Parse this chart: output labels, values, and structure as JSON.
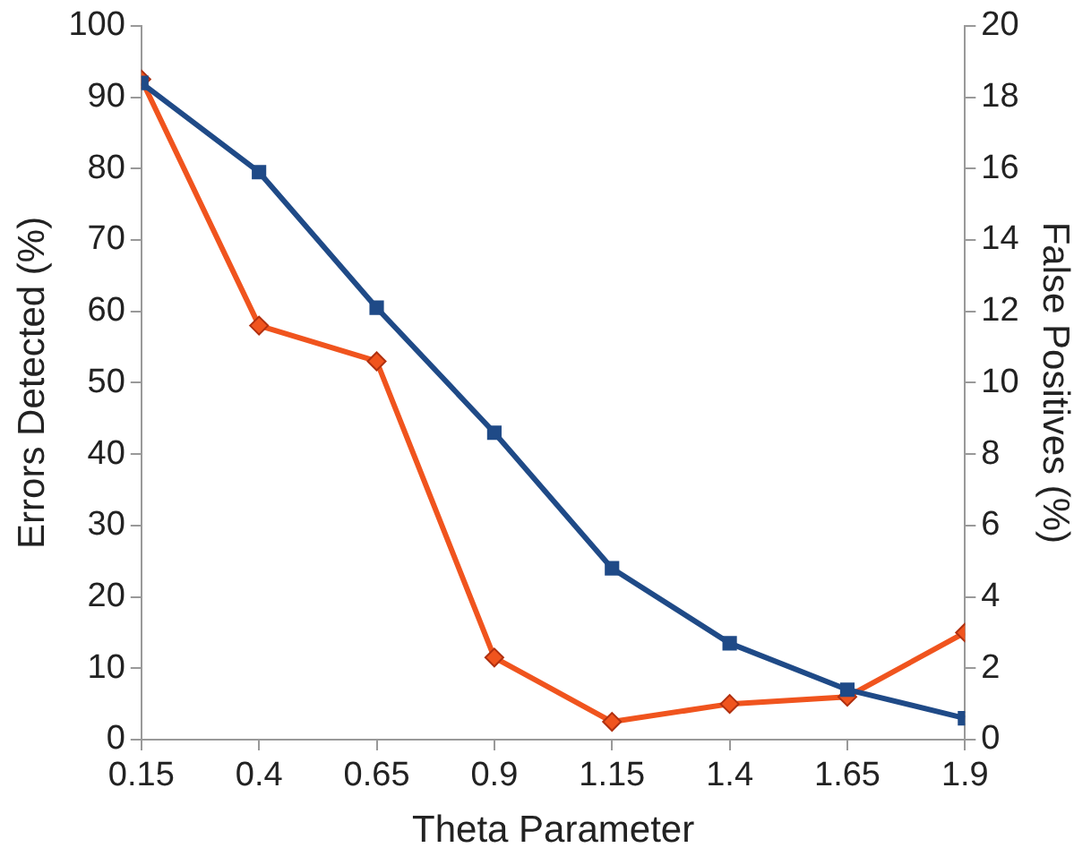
{
  "chart_data": {
    "type": "line",
    "xlabel": "Theta Parameter",
    "ylabel": "Errors Detected (%)",
    "y2label": "False Positives (%)",
    "x": [
      0.15,
      0.4,
      0.65,
      0.9,
      1.15,
      1.4,
      1.65,
      1.9
    ],
    "xlim": [
      0.15,
      1.9
    ],
    "xticks": [
      0.15,
      0.4,
      0.65,
      0.9,
      1.15,
      1.4,
      1.65,
      1.9
    ],
    "ylim": [
      0,
      100
    ],
    "yticks": [
      0,
      10,
      20,
      30,
      40,
      50,
      60,
      70,
      80,
      90,
      100
    ],
    "y2lim": [
      0,
      20
    ],
    "y2ticks": [
      0,
      2,
      4,
      6,
      8,
      10,
      12,
      14,
      16,
      18,
      20
    ],
    "grid": false,
    "legend": false,
    "line_style": "solid",
    "series": [
      {
        "color": "#1f4a87",
        "marker": "square",
        "values": [
          92,
          79.5,
          60.5,
          43,
          24,
          13.5,
          7,
          3
        ]
      },
      {
        "color": "#f0541e",
        "marker": "diamond",
        "axis": "y2",
        "values": [
          18.5,
          11.6,
          10.6,
          2.3,
          0.5,
          1,
          1.2,
          3
        ]
      }
    ]
  }
}
